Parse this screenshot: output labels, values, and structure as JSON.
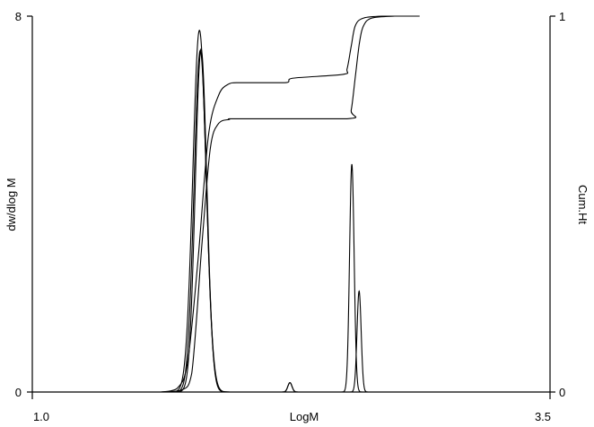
{
  "chart_data": {
    "type": "line",
    "xlabel": "LogM",
    "ylabel_left": "dw/dlog M",
    "ylabel_right": "Cum.Ht",
    "xlim": [
      1.0,
      3.5
    ],
    "ylim_left": [
      0,
      8
    ],
    "ylim_right": [
      0,
      1
    ],
    "x_tick_labels": [
      "1.0",
      "3.5"
    ],
    "y_left_tick_labels": [
      "0",
      "8"
    ],
    "y_right_tick_labels": [
      "0",
      "1"
    ],
    "grid": false,
    "legend": "none",
    "color": "#000000",
    "series": [
      {
        "axis": "left",
        "peaks": [
          {
            "center": 1.807,
            "height": 7.7,
            "sigma": 0.032
          },
          {
            "center": 2.244,
            "height": 0.2,
            "sigma": 0.01
          },
          {
            "center": 2.543,
            "height": 4.85,
            "sigma": 0.011
          }
        ],
        "x_range": [
          1.6,
          2.88
        ]
      },
      {
        "axis": "left",
        "peaks": [
          {
            "center": 1.811,
            "height": 7.27,
            "sigma": 0.03
          },
          {
            "center": 2.244,
            "height": 0.2,
            "sigma": 0.01
          },
          {
            "center": 2.578,
            "height": 2.15,
            "sigma": 0.01
          }
        ],
        "x_range": [
          1.6,
          2.88
        ]
      },
      {
        "axis": "left",
        "peaks": [
          {
            "center": 1.815,
            "height": 7.3,
            "sigma": 0.028
          }
        ],
        "x_range": [
          1.6,
          2.88
        ]
      },
      {
        "axis": "right",
        "points": [
          [
            1.62,
            0
          ],
          [
            1.7,
            0.01
          ],
          [
            1.75,
            0.08
          ],
          [
            1.8,
            0.35
          ],
          [
            1.85,
            0.68
          ],
          [
            1.9,
            0.79
          ],
          [
            1.95,
            0.82
          ],
          [
            2.0,
            0.823
          ],
          [
            2.22,
            0.823
          ],
          [
            2.26,
            0.835
          ],
          [
            2.5,
            0.845
          ],
          [
            2.52,
            0.86
          ],
          [
            2.54,
            0.92
          ],
          [
            2.56,
            0.975
          ],
          [
            2.6,
            0.995
          ],
          [
            2.7,
            1.0
          ],
          [
            2.87,
            1.0
          ]
        ]
      },
      {
        "axis": "right",
        "points": [
          [
            1.62,
            0
          ],
          [
            1.72,
            0.005
          ],
          [
            1.77,
            0.05
          ],
          [
            1.82,
            0.4
          ],
          [
            1.86,
            0.65
          ],
          [
            1.9,
            0.715
          ],
          [
            1.95,
            0.725
          ],
          [
            2.0,
            0.727
          ],
          [
            2.52,
            0.727
          ],
          [
            2.54,
            0.75
          ],
          [
            2.56,
            0.84
          ],
          [
            2.58,
            0.93
          ],
          [
            2.6,
            0.975
          ],
          [
            2.64,
            0.995
          ],
          [
            2.75,
            1.0
          ],
          [
            2.87,
            1.0
          ]
        ]
      }
    ]
  }
}
